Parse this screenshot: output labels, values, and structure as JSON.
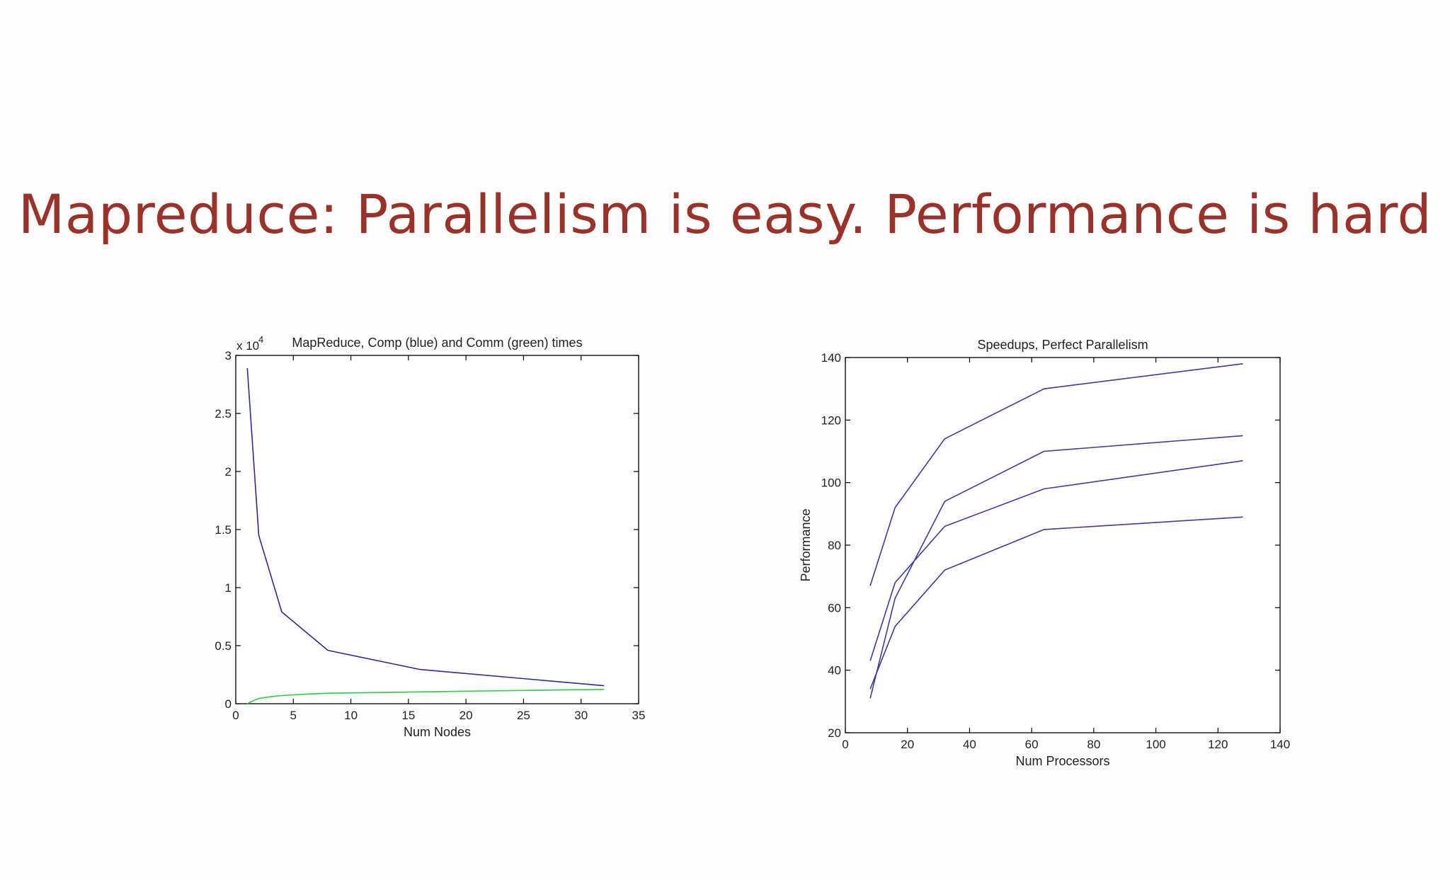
{
  "slide": {
    "title": "Mapreduce: Parallelism is easy.  Performance is hard"
  },
  "chart_data": [
    {
      "type": "line",
      "title": "MapReduce, Comp (blue) and Comm (green) times",
      "xlabel": "Num Nodes",
      "ylabel": "",
      "y_multiplier_label": "x 10",
      "y_multiplier_exponent": "4",
      "xlim": [
        0,
        35
      ],
      "ylim": [
        0,
        30000
      ],
      "x_ticks": [
        0,
        5,
        10,
        15,
        20,
        25,
        30,
        35
      ],
      "x_tick_labels": [
        "0",
        "5",
        "10",
        "15",
        "20",
        "25",
        "30",
        "35"
      ],
      "y_ticks": [
        0,
        5000,
        10000,
        15000,
        20000,
        25000,
        30000
      ],
      "y_tick_labels": [
        "0",
        "0.5",
        "1",
        "1.5",
        "2",
        "2.5",
        "3"
      ],
      "grid": false,
      "series": [
        {
          "color": "#2b2b9a",
          "x": [
            1,
            2,
            4,
            8,
            16,
            32
          ],
          "y": [
            28900,
            14500,
            7900,
            4600,
            2950,
            1550
          ]
        },
        {
          "color": "#2ecc40",
          "x": [
            1,
            1.5,
            2,
            3,
            4,
            6,
            8,
            12,
            16,
            20,
            24,
            28,
            32
          ],
          "y": [
            0,
            250,
            450,
            600,
            700,
            820,
            900,
            960,
            1020,
            1080,
            1130,
            1180,
            1230
          ]
        }
      ]
    },
    {
      "type": "line",
      "title": "Speedups, Perfect Parallelism",
      "xlabel": "Num Processors",
      "ylabel": "Performance",
      "xlim": [
        0,
        140
      ],
      "ylim": [
        20,
        140
      ],
      "x_ticks": [
        0,
        20,
        40,
        60,
        80,
        100,
        120,
        140
      ],
      "x_tick_labels": [
        "0",
        "20",
        "40",
        "60",
        "80",
        "100",
        "120",
        "140"
      ],
      "y_ticks": [
        20,
        40,
        60,
        80,
        100,
        120,
        140
      ],
      "y_tick_labels": [
        "20",
        "40",
        "60",
        "80",
        "100",
        "120",
        "140"
      ],
      "grid": false,
      "series": [
        {
          "color": "#3b3ba0",
          "x": [
            8,
            16,
            32,
            64,
            128
          ],
          "y": [
            67,
            92,
            114,
            130,
            138
          ]
        },
        {
          "color": "#3b3ba0",
          "x": [
            8,
            16,
            32,
            64,
            128
          ],
          "y": [
            31,
            63,
            94,
            110,
            115
          ]
        },
        {
          "color": "#3b3ba0",
          "x": [
            8,
            16,
            32,
            64,
            128
          ],
          "y": [
            43,
            68,
            86,
            98,
            107
          ]
        },
        {
          "color": "#3b3ba0",
          "x": [
            8,
            16,
            32,
            64,
            128
          ],
          "y": [
            34,
            54,
            72,
            85,
            89
          ]
        }
      ]
    }
  ]
}
